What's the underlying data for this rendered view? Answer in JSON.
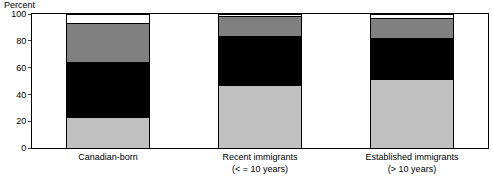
{
  "chart_data": {
    "type": "bar",
    "stacked": true,
    "ylabel": "Percent",
    "categories": [
      "Canadian-born",
      "Recent immigrants (< = 10 years)",
      "Established immigrants (> 10 years)"
    ],
    "series": [
      {
        "color": "#c0c0c0",
        "values": [
          23,
          47,
          51
        ]
      },
      {
        "color": "#000000",
        "values": [
          41,
          36,
          31
        ]
      },
      {
        "color": "#808080",
        "values": [
          29,
          15,
          15
        ]
      },
      {
        "color": "#ffffff",
        "values": [
          7,
          2,
          3
        ]
      }
    ],
    "ylim": [
      0,
      100
    ],
    "yticks": [
      0,
      20,
      40,
      60,
      80,
      100
    ],
    "grid": false
  }
}
